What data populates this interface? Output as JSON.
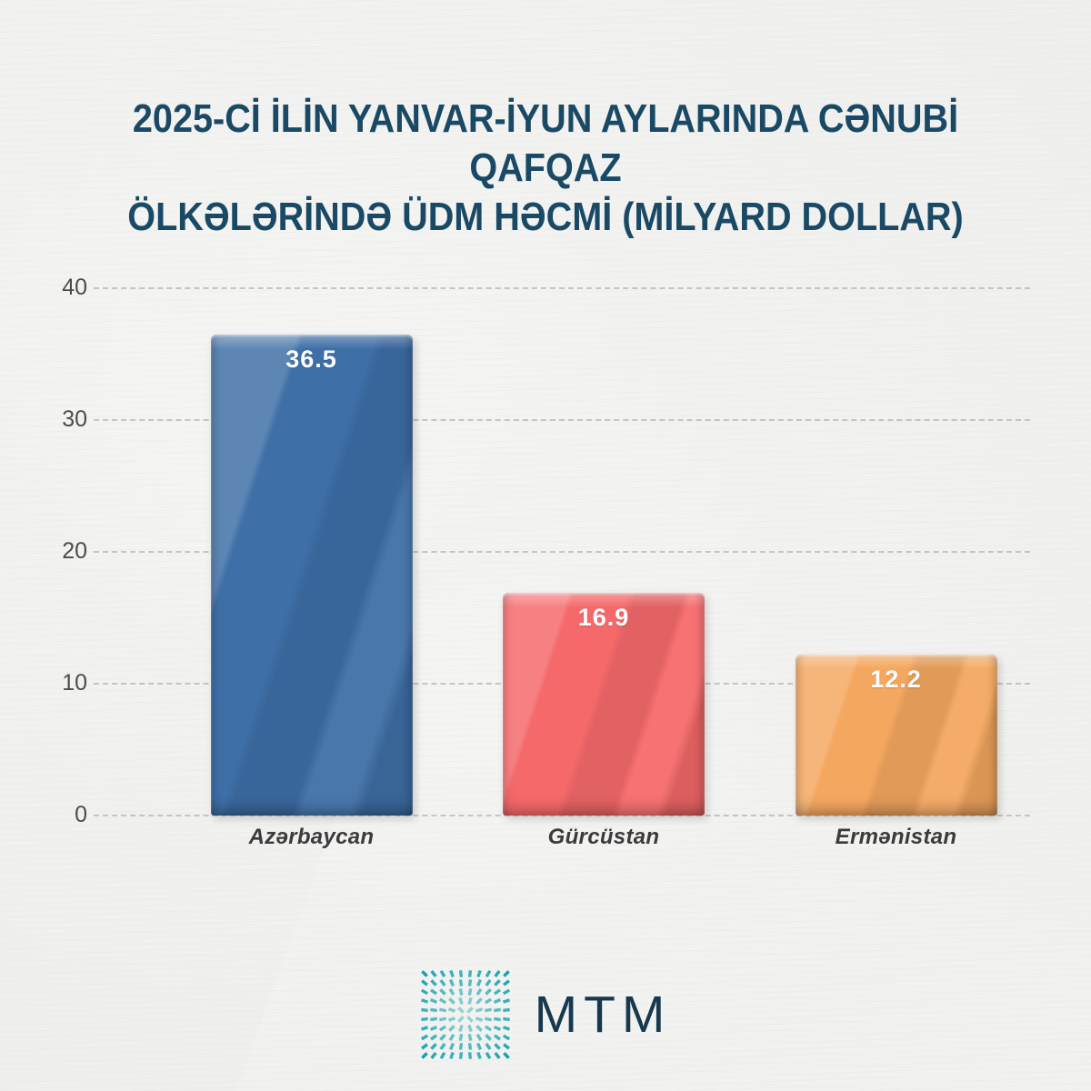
{
  "title_lines": [
    "2025-Cİ İLİN YANVAR-İYUN AYLARINDA CƏNUBİ QAFQAZ",
    "ÖLKƏLƏRİNDƏ ÜDM HƏCMİ (MİLYARD DOLLAR)"
  ],
  "chart_data": {
    "type": "bar",
    "title": "2025-Cİ İLİN YANVAR-İYUN AYLARINDA CƏNUBİ QAFQAZ ÖLKƏLƏRİNDƏ ÜDM HƏCMİ (MİLYARD DOLLAR)",
    "categories": [
      "Azərbaycan",
      "Gürcüstan",
      "Ermənistan"
    ],
    "values": [
      36.5,
      16.9,
      12.2
    ],
    "value_labels": [
      "36.5",
      "16.9",
      "12.2"
    ],
    "bar_colors": [
      "#3e6fa7",
      "#f5696a",
      "#f4a75f"
    ],
    "xlabel": "",
    "ylabel": "",
    "ylim": [
      0,
      40
    ],
    "yticks": [
      0,
      10,
      20,
      30,
      40
    ],
    "grid": "horizontal-dashed",
    "legend": "none"
  },
  "branding": {
    "logo_text": "MTM",
    "logo_icon": "teal-dash-burst",
    "logo_icon_color": "#14a3ae",
    "logo_text_color": "#16394f"
  },
  "colors": {
    "background": "#f2f2f0",
    "title": "#1a4965",
    "gridline": "#bdbdbd",
    "axis_tick_label": "#4b4b4b",
    "category_label": "#3b3b3b",
    "value_label": "#ffffff"
  }
}
